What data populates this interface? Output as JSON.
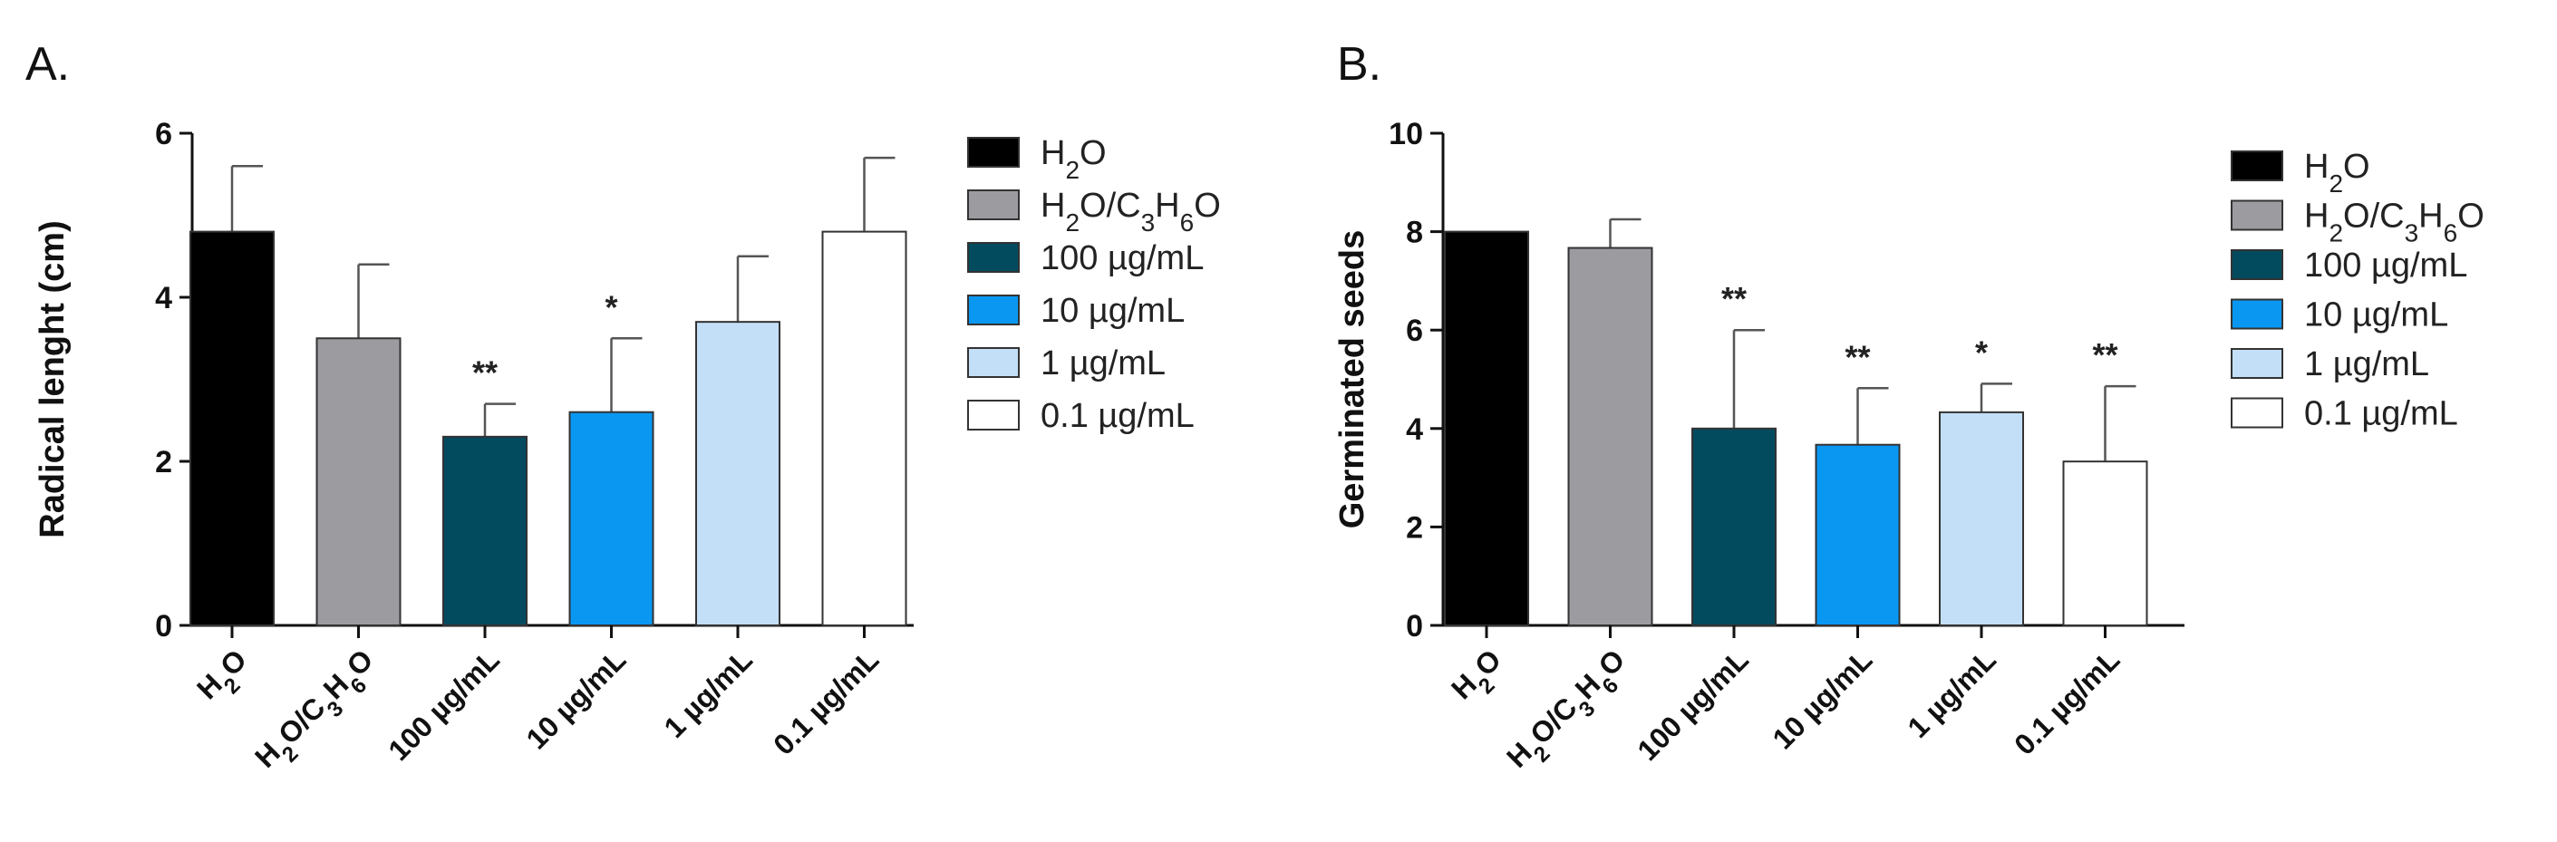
{
  "chart_data": [
    {
      "type": "bar",
      "panel_label": "A.",
      "ylabel": "Radical lenght (cm)",
      "xlabel": "",
      "ylim": [
        0,
        6
      ],
      "yticks": [
        "0",
        "2",
        "4",
        "6"
      ],
      "ytick_values": [
        0,
        2,
        4,
        6
      ],
      "categories": [
        "H2O",
        "H2O/C3H6O",
        "100 µg/mL",
        "10 µg/mL",
        "1 µg/mL",
        "0.1 µg/mL"
      ],
      "category_labels": [
        [
          [
            "H",
            "n"
          ],
          [
            "2",
            "sub"
          ],
          [
            "O",
            "n"
          ]
        ],
        [
          [
            "H",
            "n"
          ],
          [
            "2",
            "sub"
          ],
          [
            "O/C",
            "n"
          ],
          [
            "3",
            "sub"
          ],
          [
            "H",
            "n"
          ],
          [
            "6",
            "sub"
          ],
          [
            "O",
            "n"
          ]
        ],
        [
          [
            "100 µg/mL",
            "n"
          ]
        ],
        [
          [
            "10  µg/mL",
            "n"
          ]
        ],
        [
          [
            "1 µg/mL",
            "n"
          ]
        ],
        [
          [
            "0.1 µg/mL",
            "n"
          ]
        ]
      ],
      "values": [
        4.8,
        3.5,
        2.3,
        2.6,
        3.7,
        4.8
      ],
      "errors": [
        0.8,
        0.9,
        0.4,
        0.9,
        0.8,
        0.9
      ],
      "significance": [
        "",
        "",
        "**",
        "*",
        "",
        ""
      ],
      "colors": [
        "#000000",
        "#9b9ba0",
        "#024b5f",
        "#0a97f2",
        "#c3dff7",
        "#ffffff"
      ],
      "legend": [
        [
          [
            "H",
            "n"
          ],
          [
            "2",
            "sub"
          ],
          [
            "O",
            "n"
          ]
        ],
        [
          [
            "H",
            "n"
          ],
          [
            "2",
            "sub"
          ],
          [
            "O/C",
            "n"
          ],
          [
            "3",
            "sub"
          ],
          [
            "H",
            "n"
          ],
          [
            "6",
            "sub"
          ],
          [
            "O",
            "n"
          ]
        ],
        [
          [
            "100 µg/mL",
            "n"
          ]
        ],
        [
          [
            "10  µg/mL",
            "n"
          ]
        ],
        [
          [
            "1 µg/mL",
            "n"
          ]
        ],
        [
          [
            "0.1 µg/mL",
            "n"
          ]
        ]
      ],
      "legend_placement": "right"
    },
    {
      "type": "bar",
      "panel_label": "B.",
      "ylabel": "Germinated seeds",
      "xlabel": "",
      "ylim": [
        0,
        10
      ],
      "yticks": [
        "0",
        "2",
        "4",
        "6",
        "8",
        "10"
      ],
      "ytick_values": [
        0,
        2,
        4,
        6,
        8,
        10
      ],
      "categories": [
        "H2O",
        "H2O/C3H6O",
        "100 µg/mL",
        "10 µg/mL",
        "1 µg/mL",
        "0.1 µg/mL"
      ],
      "category_labels": [
        [
          [
            "H",
            "n"
          ],
          [
            "2",
            "sub"
          ],
          [
            "O",
            "n"
          ]
        ],
        [
          [
            "H",
            "n"
          ],
          [
            "2",
            "sub"
          ],
          [
            "O/C",
            "n"
          ],
          [
            "3",
            "sub"
          ],
          [
            "H",
            "n"
          ],
          [
            "6",
            "sub"
          ],
          [
            "O",
            "n"
          ]
        ],
        [
          [
            "100 µg/mL",
            "n"
          ]
        ],
        [
          [
            "10 µg/mL",
            "n"
          ]
        ],
        [
          [
            "1 µg/mL",
            "n"
          ]
        ],
        [
          [
            "0.1 µg/mL",
            "n"
          ]
        ]
      ],
      "values": [
        8.0,
        7.67,
        4.0,
        3.67,
        4.33,
        3.33
      ],
      "errors": [
        0,
        0.58,
        2.0,
        1.15,
        0.58,
        1.53
      ],
      "significance": [
        "",
        "",
        "**",
        "**",
        "*",
        "**"
      ],
      "colors": [
        "#000000",
        "#9b9ba0",
        "#024b5f",
        "#0a97f2",
        "#c3dff7",
        "#ffffff"
      ],
      "legend": [
        [
          [
            "H",
            "n"
          ],
          [
            "2",
            "sub"
          ],
          [
            "O",
            "n"
          ]
        ],
        [
          [
            "H",
            "n"
          ],
          [
            "2",
            "sub"
          ],
          [
            "O/C",
            "n"
          ],
          [
            "3",
            "sub"
          ],
          [
            "H",
            "n"
          ],
          [
            "6",
            "sub"
          ],
          [
            "O",
            "n"
          ]
        ],
        [
          [
            "100 µg/mL",
            "n"
          ]
        ],
        [
          [
            "10 µg/mL",
            "n"
          ]
        ],
        [
          [
            "1 µg/mL",
            "n"
          ]
        ],
        [
          [
            "0.1 µg/mL",
            "n"
          ]
        ]
      ],
      "legend_placement": "right"
    }
  ]
}
